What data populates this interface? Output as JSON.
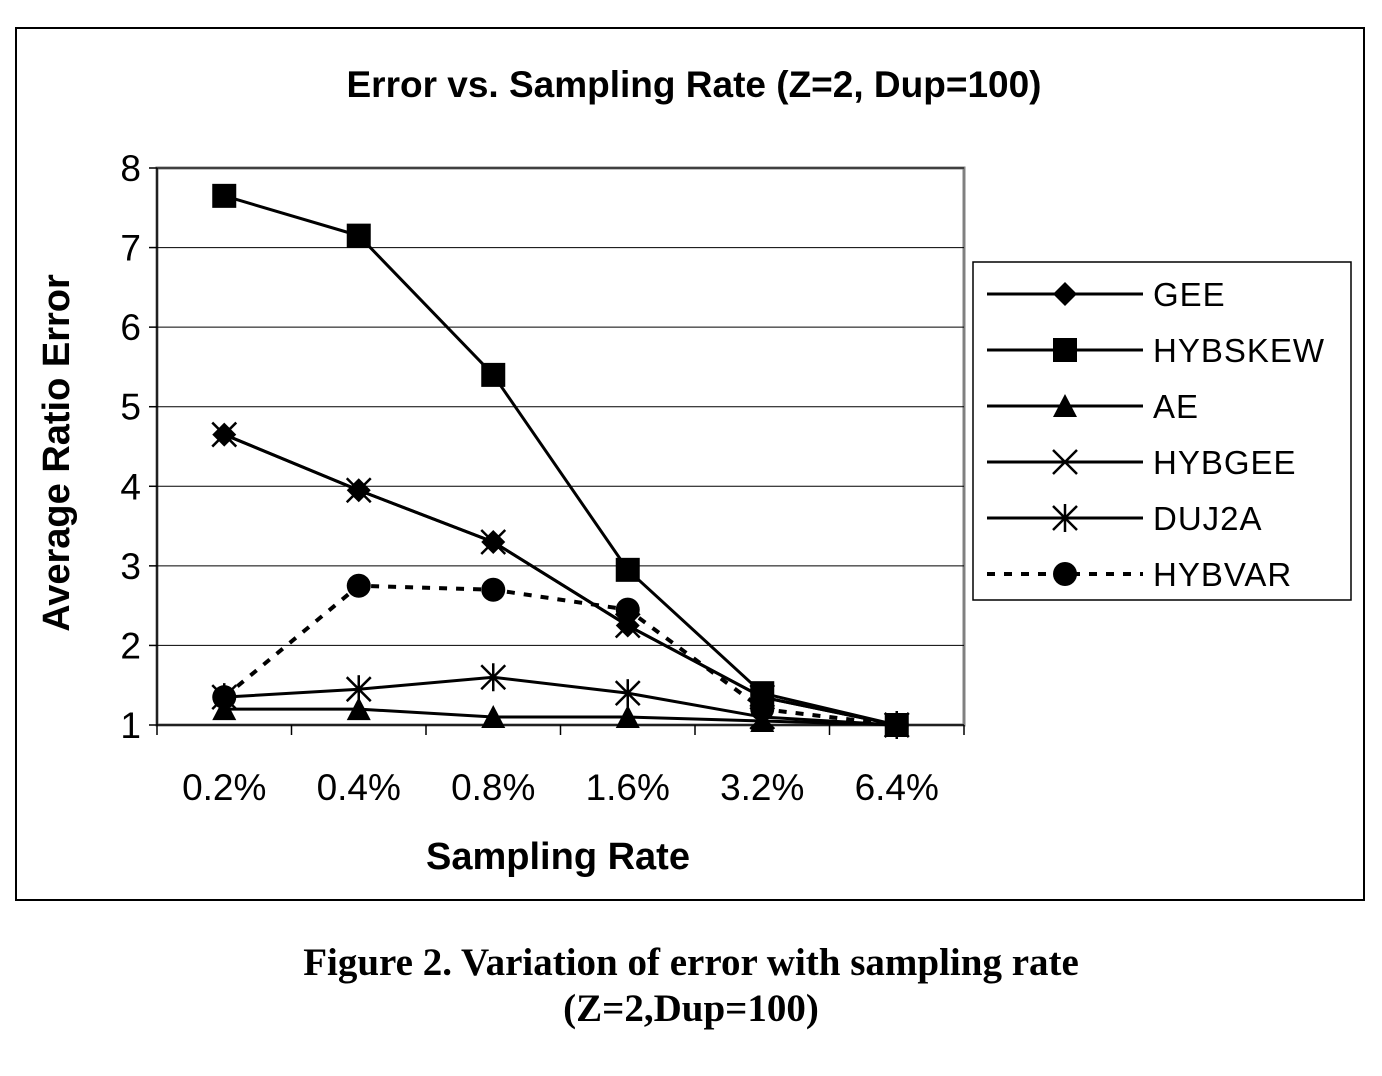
{
  "chart_data": {
    "type": "line",
    "title": "Error vs. Sampling Rate (Z=2, Dup=100)",
    "xlabel": "Sampling Rate",
    "ylabel": "Average Ratio Error",
    "categories": [
      "0.2%",
      "0.4%",
      "0.8%",
      "1.6%",
      "3.2%",
      "6.4%"
    ],
    "ylim": [
      1,
      8
    ],
    "yticks": [
      "1",
      "2",
      "3",
      "4",
      "5",
      "6",
      "7",
      "8"
    ],
    "grid": "horizontal",
    "legend_position": "right",
    "series": [
      {
        "name": "GEE",
        "marker": "diamond",
        "dash": "solid",
        "values": [
          4.65,
          3.95,
          3.3,
          2.25,
          1.35,
          1.0
        ]
      },
      {
        "name": "HYBSKEW",
        "marker": "square",
        "dash": "solid",
        "values": [
          7.65,
          7.15,
          5.4,
          2.95,
          1.4,
          1.0
        ]
      },
      {
        "name": "AE",
        "marker": "triangle",
        "dash": "solid",
        "values": [
          1.2,
          1.2,
          1.1,
          1.1,
          1.05,
          1.0
        ]
      },
      {
        "name": "HYBGEE",
        "marker": "x",
        "dash": "solid",
        "values": [
          4.65,
          3.95,
          3.3,
          2.25,
          1.35,
          1.0
        ]
      },
      {
        "name": "DUJ2A",
        "marker": "asterisk",
        "dash": "solid",
        "values": [
          1.35,
          1.45,
          1.6,
          1.4,
          1.1,
          1.0
        ]
      },
      {
        "name": "HYBVAR",
        "marker": "circle",
        "dash": "dotted",
        "values": [
          1.35,
          2.75,
          2.7,
          2.45,
          1.2,
          1.0
        ]
      }
    ]
  },
  "caption": {
    "line1": "Figure 2. Variation of error with sampling rate",
    "line2": "(Z=2,Dup=100)"
  }
}
